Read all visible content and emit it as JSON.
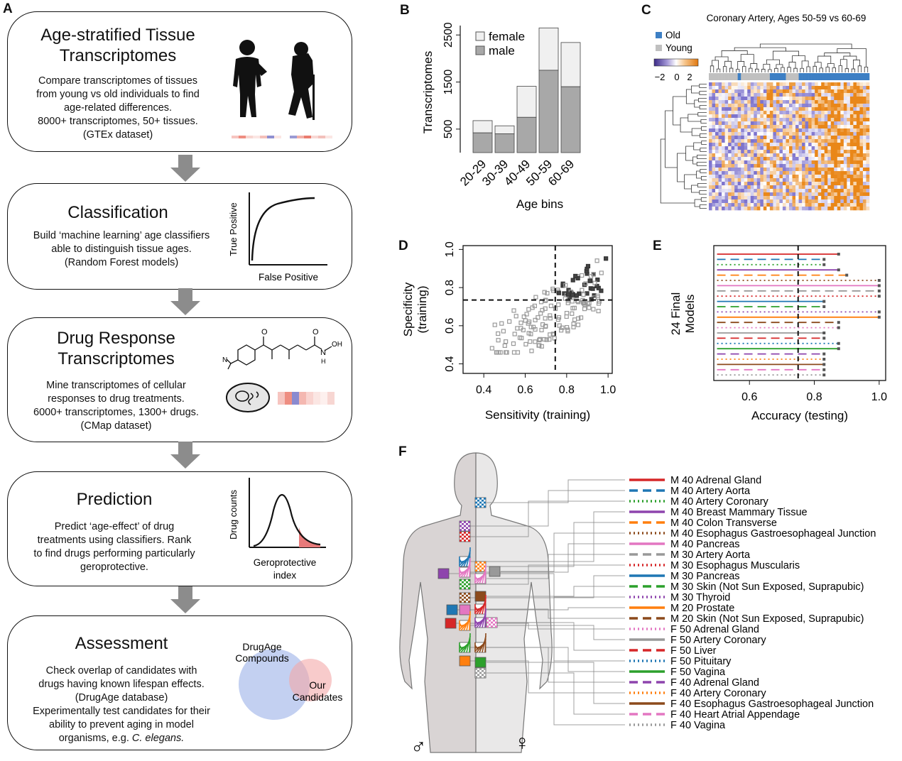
{
  "panels": {
    "a": "A",
    "b": "B",
    "c": "C",
    "d": "D",
    "e": "E",
    "f": "F"
  },
  "flow": {
    "box1": {
      "title1": "Age-stratified Tissue",
      "title2": "Transcriptomes",
      "l1": "Compare transcriptomes of tissues",
      "l2": "from young vs old individuals to find",
      "l3": "age-related differences.",
      "l4": "8000+ transcriptomes, 50+ tissues.",
      "l5": "(GTEx dataset)"
    },
    "box2": {
      "title": "Classification",
      "l1": "Build ‘machine learning’ age classifiers",
      "l2": "able to distinguish tissue ages.",
      "l3": "(Random Forest models)",
      "roc_y": "True Positive",
      "roc_x": "False Positive"
    },
    "box3": {
      "title1": "Drug Response",
      "title2": "Transcriptomes",
      "l1": "Mine transcriptomes of cellular",
      "l2": "responses to drug treatments.",
      "l3": "6000+ transcriptomes, 1300+ drugs.",
      "l4": "(CMap dataset)",
      "chem_o": "O",
      "chem_n": "N",
      "chem_h": "H",
      "chem_oh": "OH"
    },
    "box4": {
      "title": "Prediction",
      "l1": "Predict ‘age-effect’ of drug",
      "l2": "treatments using classifiers. Rank",
      "l3": "to find drugs performing particularly",
      "l4": "geroprotective.",
      "dist_y": "Drug counts",
      "dist_x1": "Geroprotective",
      "dist_x2": "index"
    },
    "box5": {
      "title": "Assessment",
      "l1": "Check overlap of candidates with",
      "l2": "drugs having known lifespan effects.",
      "l3": "(DrugAge database)",
      "l4": "Experimentally test candidates for their",
      "l5": "ability to prevent aging in model",
      "l6a": "organisms, e.g. ",
      "l6b": "C. elegans.",
      "venn_a1": "DrugAge",
      "venn_a2": "Compounds",
      "venn_b1": "Our",
      "venn_b2": "Candidates"
    }
  },
  "chart_data": [
    {
      "type": "bar",
      "panel": "B",
      "xlabel": "Age bins",
      "ylabel": "Transcriptomes",
      "categories": [
        "20-29",
        "30-39",
        "40-49",
        "50-59",
        "60-69"
      ],
      "series": [
        {
          "name": "male",
          "color": "#a8a8a8",
          "values": [
            420,
            400,
            750,
            1750,
            1400
          ]
        },
        {
          "name": "female",
          "color": "#f0f0f0",
          "values": [
            260,
            170,
            660,
            900,
            940
          ]
        }
      ],
      "ylim": [
        0,
        2700
      ],
      "yticks": [
        500,
        1500,
        2500
      ],
      "legend": "top-left"
    },
    {
      "type": "heatmap",
      "panel": "C",
      "title": "Coronary Artery, Ages 50-59 vs 60-69",
      "legend": [
        {
          "label": "Old",
          "color": "#3d7fc4"
        },
        {
          "label": "Young",
          "color": "#c0c0c0"
        }
      ],
      "colorbar_ticks": [
        "−2",
        "0",
        "2"
      ]
    },
    {
      "type": "scatter",
      "panel": "D",
      "xlabel": "Sensitivity (training)",
      "ylabel1": "Specificity",
      "ylabel2": "(training)",
      "xlim": [
        0.3,
        1.02
      ],
      "ylim": [
        0.35,
        1.02
      ],
      "xticks": [
        "0.4",
        "0.6",
        "0.8",
        "1.0"
      ],
      "yticks": [
        "0.4",
        "0.6",
        "0.8",
        "1.0"
      ],
      "threshold_x": 0.745,
      "threshold_y": 0.735
    },
    {
      "type": "line",
      "panel": "E",
      "xlabel": "Accuracy (testing)",
      "ylabel1": "24 Final",
      "ylabel2": "Models",
      "xlim": [
        0.49,
        1.02
      ],
      "xticks": [
        "0.6",
        "0.8",
        "1.0"
      ],
      "threshold": 0.75,
      "values": [
        0.875,
        0.83,
        0.83,
        0.875,
        0.9,
        1.0,
        1.0,
        1.0,
        1.0,
        0.83,
        0.83,
        1.0,
        1.0,
        0.875,
        0.875,
        0.83,
        0.83,
        0.875,
        0.875,
        0.83,
        0.83,
        0.83,
        0.83,
        0.83
      ]
    }
  ],
  "legend_f": [
    {
      "label": "M 40 Adrenal Gland",
      "color": "#d62728",
      "style": "solid"
    },
    {
      "label": "M 40 Artery Aorta",
      "color": "#1f77b4",
      "style": "dashed"
    },
    {
      "label": "M 40 Artery Coronary",
      "color": "#2ca02c",
      "style": "dotted"
    },
    {
      "label": "M 40 Breast Mammary Tissue",
      "color": "#8e44ad",
      "style": "solid"
    },
    {
      "label": "M 40 Colon Transverse",
      "color": "#ff7f0e",
      "style": "dashed"
    },
    {
      "label": "M 40 Esophagus Gastroesophageal Junction",
      "color": "#8c4a1c",
      "style": "dotted"
    },
    {
      "label": "M 40 Pancreas",
      "color": "#e377c2",
      "style": "solid"
    },
    {
      "label": "M 30 Artery Aorta",
      "color": "#999999",
      "style": "dashed"
    },
    {
      "label": "M 30 Esophagus Muscularis",
      "color": "#d62728",
      "style": "dotted"
    },
    {
      "label": "M 30 Pancreas",
      "color": "#1f77b4",
      "style": "solid"
    },
    {
      "label": "M 30 Skin (Not Sun Exposed, Suprapubic)",
      "color": "#2ca02c",
      "style": "dashed"
    },
    {
      "label": "M 30 Thyroid",
      "color": "#8e44ad",
      "style": "dotted"
    },
    {
      "label": "M 20 Prostate",
      "color": "#ff7f0e",
      "style": "solid"
    },
    {
      "label": "M 20 Skin (Not Sun Exposed, Suprapubic)",
      "color": "#8c4a1c",
      "style": "dashed"
    },
    {
      "label": "F 50 Adrenal Gland",
      "color": "#e377c2",
      "style": "dotted"
    },
    {
      "label": "F 50 Artery Coronary",
      "color": "#999999",
      "style": "solid"
    },
    {
      "label": "F 50 Liver",
      "color": "#d62728",
      "style": "dashed"
    },
    {
      "label": "F 50 Pituitary",
      "color": "#1f77b4",
      "style": "dotted"
    },
    {
      "label": "F 50 Vagina",
      "color": "#2ca02c",
      "style": "solid"
    },
    {
      "label": "F 40 Adrenal Gland",
      "color": "#8e44ad",
      "style": "dashed"
    },
    {
      "label": "F 40 Artery Coronary",
      "color": "#ff7f0e",
      "style": "dotted"
    },
    {
      "label": "F 40 Esophagus Gastroesophageal Junction",
      "color": "#8c4a1c",
      "style": "solid"
    },
    {
      "label": "F 40 Heart Atrial Appendage",
      "color": "#e377c2",
      "style": "dashed"
    },
    {
      "label": "F 40 Vagina",
      "color": "#999999",
      "style": "dotted"
    }
  ],
  "body_f": {
    "male": "♂",
    "female": "♀"
  }
}
